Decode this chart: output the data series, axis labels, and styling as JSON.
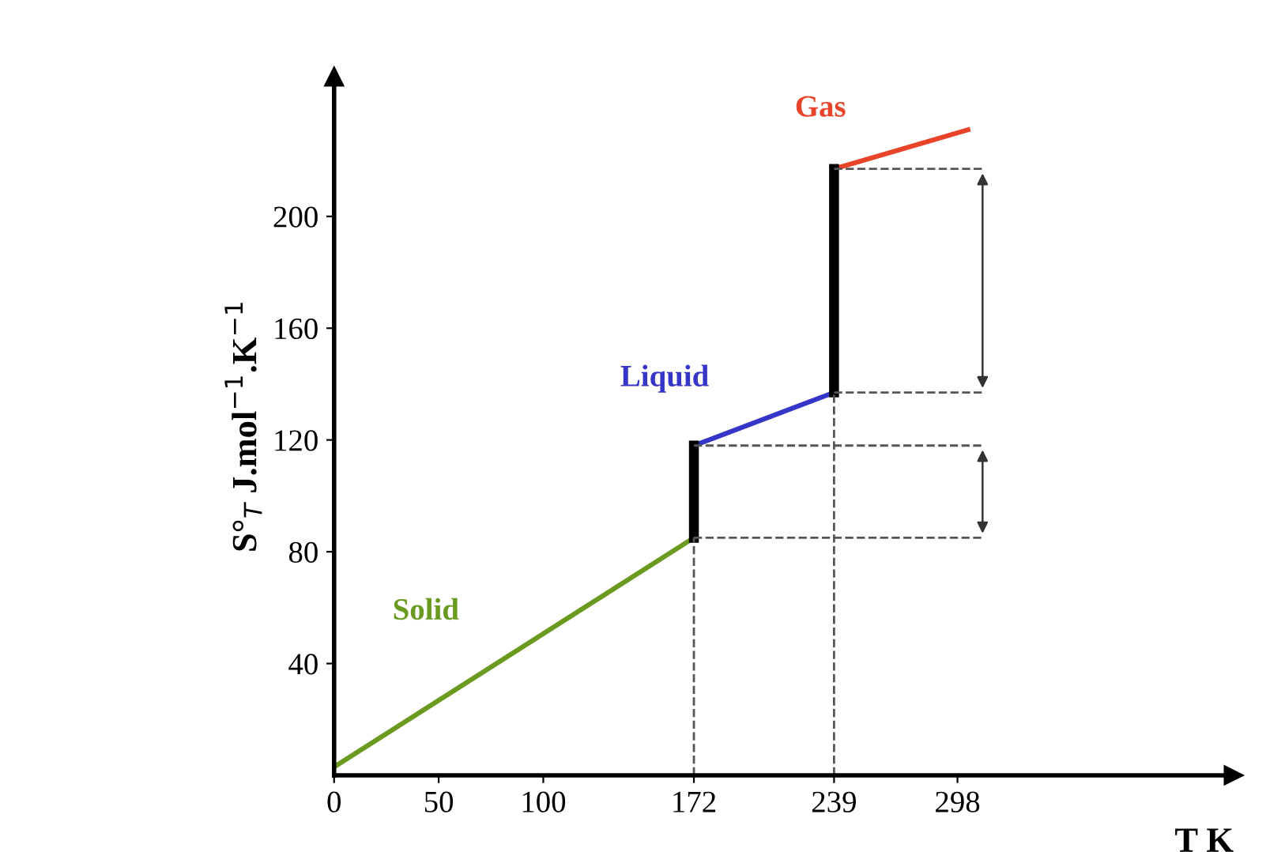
{
  "chart_data": {
    "type": "line",
    "xlabel": "T K",
    "ylabel": "S°$_{T}$ J.mol$^{−1}$.K$^{−1}$",
    "xlim": [
      0,
      430
    ],
    "ylim": [
      0,
      250
    ],
    "xticks": [
      0,
      {
        "value": 50,
        "label": "50"
      },
      {
        "value": 100,
        "label": "100"
      },
      172,
      239,
      298
    ],
    "yticks": [
      40,
      80,
      120,
      160,
      200
    ],
    "grid": false,
    "legend": false,
    "marker": "none",
    "series": [
      {
        "name": "Solid",
        "color": "#6a9a1f",
        "x": [
          0,
          172
        ],
        "values": [
          3,
          85
        ]
      },
      {
        "name": "Liquid",
        "color": "#3535c8",
        "x": [
          172,
          239
        ],
        "values": [
          118,
          137
        ]
      },
      {
        "name": "Gas",
        "color": "#e8442a",
        "x": [
          239,
          303
        ],
        "values": [
          217,
          231
        ]
      },
      {
        "color": "#000000",
        "x": [
          172,
          172
        ],
        "values": [
          85,
          118
        ]
      },
      {
        "color": "#000000",
        "x": [
          239,
          239
        ],
        "values": [
          137,
          217
        ]
      },
      {
        "color": "#555555",
        "line_style": "dashed",
        "x": [
          172,
          172
        ],
        "values": [
          0,
          85
        ]
      },
      {
        "color": "#555555",
        "line_style": "dashed",
        "x": [
          239,
          239
        ],
        "values": [
          0,
          137
        ]
      },
      {
        "color": "#555555",
        "line_style": "dashed",
        "x": [
          172,
          310
        ],
        "values": [
          85,
          85
        ]
      },
      {
        "color": "#555555",
        "line_style": "dashed",
        "x": [
          172,
          310
        ],
        "values": [
          118,
          118
        ]
      },
      {
        "color": "#555555",
        "line_style": "dashed",
        "x": [
          239,
          310
        ],
        "values": [
          137,
          137
        ]
      },
      {
        "color": "#555555",
        "line_style": "dashed",
        "x": [
          239,
          310
        ],
        "values": [
          217,
          217
        ]
      }
    ]
  }
}
